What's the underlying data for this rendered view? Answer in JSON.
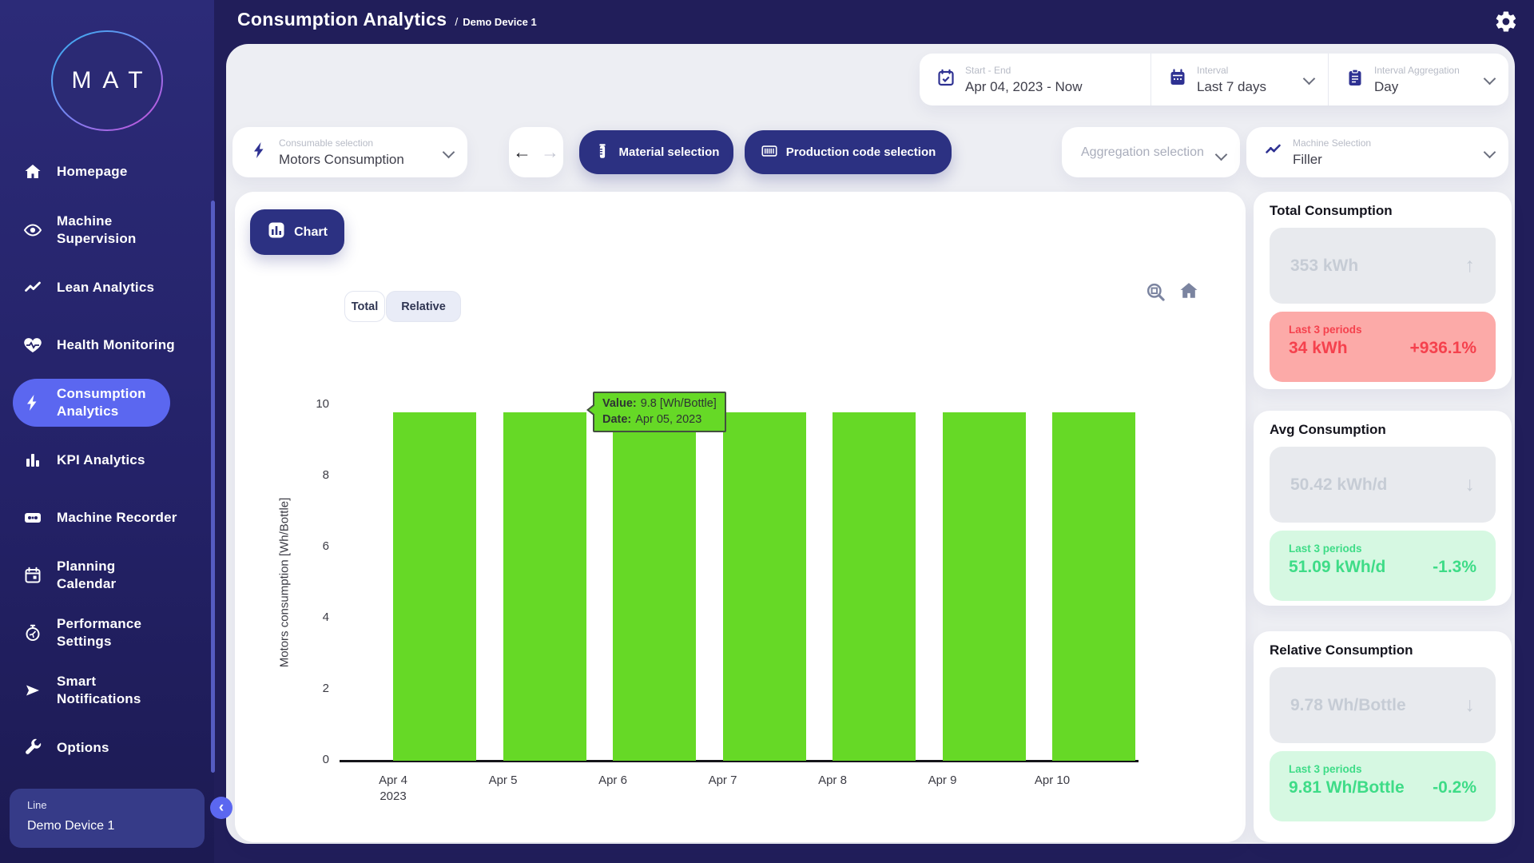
{
  "header": {
    "title": "Consumption Analytics",
    "separator": "/",
    "subtitle": "Demo Device 1"
  },
  "sidebar": {
    "logo": "MAT",
    "items": [
      {
        "label": "Homepage",
        "icon": "home"
      },
      {
        "label": "Machine Supervision",
        "icon": "eye"
      },
      {
        "label": "Lean Analytics",
        "icon": "trend"
      },
      {
        "label": "Health Monitoring",
        "icon": "heart-pulse"
      },
      {
        "label": "Consumption Analytics",
        "icon": "bolt",
        "active": true
      },
      {
        "label": "KPI Analytics",
        "icon": "bar-chart"
      },
      {
        "label": "Machine Recorder",
        "icon": "cassette"
      },
      {
        "label": "Planning Calendar",
        "icon": "calendar"
      },
      {
        "label": "Performance Settings",
        "icon": "stopwatch"
      },
      {
        "label": "Smart Notifications",
        "icon": "send"
      },
      {
        "label": "Options",
        "icon": "wrench"
      }
    ],
    "device_card": {
      "label": "Line",
      "value": "Demo Device 1"
    }
  },
  "filters": {
    "start_end": {
      "label": "Start - End",
      "value": "Apr 04, 2023 - Now"
    },
    "interval": {
      "label": "Interval",
      "value": "Last 7 days"
    },
    "interval_aggregation": {
      "label": "Interval Aggregation",
      "value": "Day"
    },
    "consumable": {
      "label": "Consumable selection",
      "value": "Motors Consumption"
    },
    "material_button_label": "Material selection",
    "production_button_label": "Production code selection",
    "aggregation_placeholder": "Aggregation selection",
    "machine": {
      "label": "Machine Selection",
      "value": "Filler"
    }
  },
  "chart_panel": {
    "chart_tab_label": "Chart",
    "modes": {
      "total": "Total",
      "relative": "Relative"
    },
    "selected_mode": "Relative",
    "tooltip": {
      "value_label": "Value:",
      "value_text": "9.8 [Wh/Bottle]",
      "date_label": "Date:",
      "date_text": "Apr 05, 2023"
    }
  },
  "chart_data": {
    "type": "bar",
    "title": "",
    "x_categories": [
      [
        "Apr 4",
        "2023"
      ],
      [
        "Apr 5"
      ],
      [
        "Apr 6"
      ],
      [
        "Apr 7"
      ],
      [
        "Apr 8"
      ],
      [
        "Apr 9"
      ],
      [
        "Apr 10"
      ]
    ],
    "values": [
      9.8,
      9.8,
      9.8,
      9.8,
      9.8,
      9.8,
      9.8
    ],
    "ylabel": "Motors consumption [Wh/Bottle]",
    "xlabel": "",
    "yticks": [
      0,
      2,
      4,
      6,
      8,
      10
    ],
    "ylim": [
      0,
      10.3
    ],
    "grid": false,
    "legend": false,
    "bar_color": "#66d926",
    "highlighted_point": {
      "date": "Apr 05, 2023",
      "value": 9.8
    }
  },
  "stats": [
    {
      "title": "Total Consumption",
      "value": "353 kWh",
      "trend_arrow": "↑",
      "period_label": "Last 3 periods",
      "period_value": "34 kWh",
      "period_delta": "+936.1%",
      "tone": "negative"
    },
    {
      "title": "Avg Consumption",
      "value": "50.42 kWh/d",
      "trend_arrow": "↓",
      "period_label": "Last 3 periods",
      "period_value": "51.09 kWh/d",
      "period_delta": "-1.3%",
      "tone": "positive"
    },
    {
      "title": "Relative Consumption",
      "value": "9.78 Wh/Bottle",
      "trend_arrow": "↓",
      "period_label": "Last 3 periods",
      "period_value": "9.81 Wh/Bottle",
      "period_delta": "-0.2%",
      "tone": "positive"
    }
  ],
  "colors": {
    "accent": "#5b67f0",
    "navy_button": "#2c3182",
    "bar_green": "#66d926",
    "negative_text": "#f5414d",
    "negative_bg": "#fcaaa8",
    "positive_text": "#3edc87",
    "positive_bg": "#d6f8e2",
    "muted_value": "#c6ccd5",
    "outer_background": "#211e5a"
  }
}
